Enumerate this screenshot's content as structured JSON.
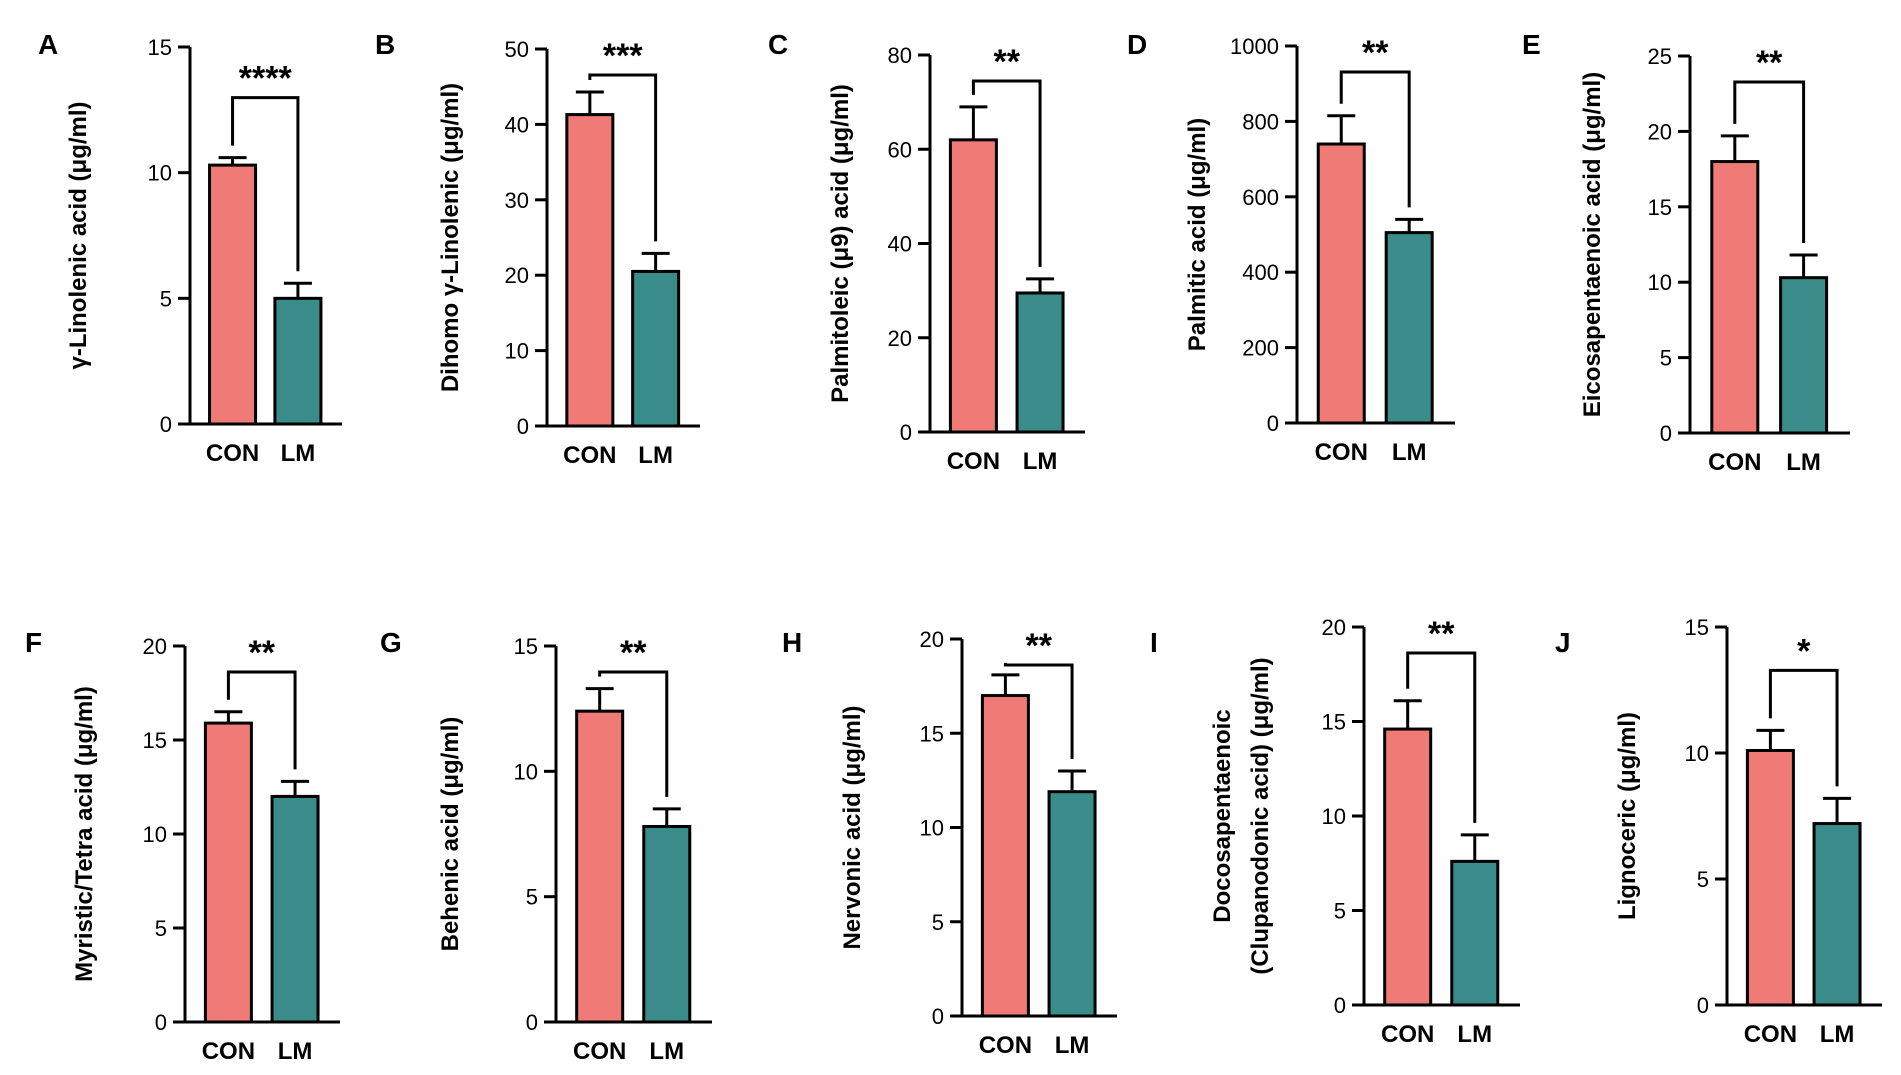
{
  "colors": {
    "con": "#F07B76",
    "lm": "#3A8C8A",
    "axis": "#000000"
  },
  "categories": [
    "CON",
    "LM"
  ],
  "chart_data": [
    {
      "type": "bar",
      "panel": "A",
      "ylabel": "γ-Linolenic acid (μg/ml)",
      "categories": [
        "CON",
        "LM"
      ],
      "values": [
        10.3,
        5.0
      ],
      "errors": [
        0.3,
        0.6
      ],
      "ylim": [
        0,
        15
      ],
      "yticks": [
        0,
        5,
        10,
        15
      ],
      "significance": "****"
    },
    {
      "type": "bar",
      "panel": "B",
      "ylabel": "Dihomo γ-Linolenic (μg/ml)",
      "categories": [
        "CON",
        "LM"
      ],
      "values": [
        41.3,
        20.5
      ],
      "errors": [
        3.0,
        2.4
      ],
      "ylim": [
        0,
        50
      ],
      "yticks": [
        0,
        10,
        20,
        30,
        40,
        50
      ],
      "significance": "***"
    },
    {
      "type": "bar",
      "panel": "C",
      "ylabel": "Palmitoleic (μ9) acid (μg/ml)",
      "categories": [
        "CON",
        "LM"
      ],
      "values": [
        62,
        29.5
      ],
      "errors": [
        7,
        3
      ],
      "ylim": [
        0,
        80
      ],
      "yticks": [
        0,
        20,
        40,
        60,
        80
      ],
      "significance": "**"
    },
    {
      "type": "bar",
      "panel": "D",
      "ylabel": "Palmitic acid (μg/ml)",
      "categories": [
        "CON",
        "LM"
      ],
      "values": [
        740,
        505
      ],
      "errors": [
        75,
        35
      ],
      "ylim": [
        0,
        1000
      ],
      "yticks": [
        0,
        200,
        400,
        600,
        800,
        1000
      ],
      "significance": "**"
    },
    {
      "type": "bar",
      "panel": "E",
      "ylabel": "Eicosapentaenoic acid (μg/ml)",
      "categories": [
        "CON",
        "LM"
      ],
      "values": [
        18.0,
        10.3
      ],
      "errors": [
        1.7,
        1.5
      ],
      "ylim": [
        0,
        25
      ],
      "yticks": [
        0,
        5,
        10,
        15,
        20,
        25
      ],
      "significance": "**"
    },
    {
      "type": "bar",
      "panel": "F",
      "ylabel": "Myristic/Tetra acid (μg/ml)",
      "categories": [
        "CON",
        "LM"
      ],
      "values": [
        15.9,
        12.0
      ],
      "errors": [
        0.6,
        0.8
      ],
      "ylim": [
        0,
        20
      ],
      "yticks": [
        0,
        5,
        10,
        15,
        20
      ],
      "significance": "**"
    },
    {
      "type": "bar",
      "panel": "G",
      "ylabel": "Behenic acid (μg/ml)",
      "categories": [
        "CON",
        "LM"
      ],
      "values": [
        12.4,
        7.8
      ],
      "errors": [
        0.9,
        0.7
      ],
      "ylim": [
        0,
        15
      ],
      "yticks": [
        0,
        5,
        10,
        15
      ],
      "significance": "**"
    },
    {
      "type": "bar",
      "panel": "H",
      "ylabel": "Nervonic acid (μg/ml)",
      "categories": [
        "CON",
        "LM"
      ],
      "values": [
        17.0,
        11.9
      ],
      "errors": [
        1.1,
        1.1
      ],
      "ylim": [
        0,
        20
      ],
      "yticks": [
        0,
        5,
        10,
        15,
        20
      ],
      "significance": "**"
    },
    {
      "type": "bar",
      "panel": "I",
      "ylabel": "Docosapentaenoic",
      "ylabel2": "(Clupanodonic acid) (μg/ml)",
      "categories": [
        "CON",
        "LM"
      ],
      "values": [
        14.6,
        7.6
      ],
      "errors": [
        1.5,
        1.4
      ],
      "ylim": [
        0,
        20
      ],
      "yticks": [
        0,
        5,
        10,
        15,
        20
      ],
      "significance": "**"
    },
    {
      "type": "bar",
      "panel": "J",
      "ylabel": "Lignoceric (μg/ml)",
      "categories": [
        "CON",
        "LM"
      ],
      "values": [
        10.1,
        7.2
      ],
      "errors": [
        0.8,
        1.0
      ],
      "ylim": [
        0,
        15
      ],
      "yticks": [
        0,
        5,
        10,
        15
      ],
      "significance": "*"
    }
  ]
}
